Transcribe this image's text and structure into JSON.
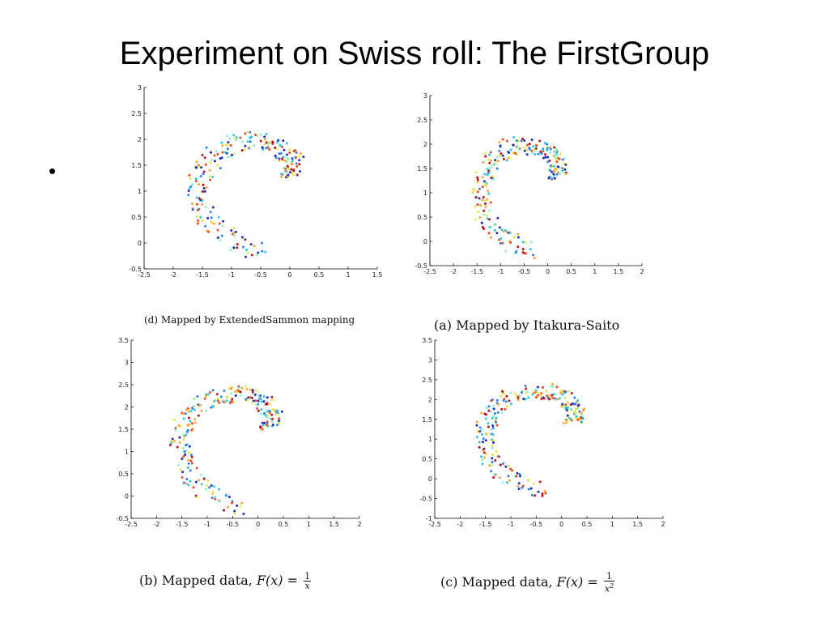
{
  "title": "Experiment on Swiss roll: The FirstGroup",
  "bullet": "•",
  "colors": {
    "scale": [
      "#1f2fb5",
      "#2f7fe8",
      "#29c7e6",
      "#8ef0c8",
      "#e6e640",
      "#f6a830",
      "#e84a2a",
      "#b8101e"
    ]
  },
  "panels": [
    {
      "id": "d",
      "caption": "(d) Mapped by ExtendedSammon mapping",
      "chart_data": {
        "type": "scatter",
        "xlim": [
          -2.5,
          1.5
        ],
        "ylim": [
          -0.5,
          3
        ],
        "xticks": [
          -2.5,
          -2,
          -1.5,
          -1,
          -0.5,
          0,
          0.5,
          1,
          1.5
        ],
        "yticks": [
          -0.5,
          0,
          0.5,
          1,
          1.5,
          2,
          2.5,
          3
        ],
        "spiral": {
          "cx": -0.35,
          "cy": 1.25,
          "a_start": 0.0,
          "a_end": 4.5,
          "r_start": 0.35,
          "r_end": 1.6,
          "x_scale": 1.0,
          "y_scale": 0.88
        },
        "n_points": 230
      }
    },
    {
      "id": "a",
      "caption": "(a) Mapped by Itakura-Saito",
      "chart_data": {
        "type": "scatter",
        "xlim": [
          -2.5,
          2
        ],
        "ylim": [
          -0.5,
          3
        ],
        "xticks": [
          -2.5,
          -2,
          -1.5,
          -1,
          -0.5,
          0,
          0.5,
          1,
          1.5,
          2
        ],
        "yticks": [
          -0.5,
          0,
          0.5,
          1,
          1.5,
          2,
          2.5,
          3
        ],
        "spiral": {
          "cx": -0.2,
          "cy": 1.25,
          "a_start": 0.0,
          "a_end": 4.5,
          "r_start": 0.4,
          "r_end": 1.6,
          "x_scale": 1.0,
          "y_scale": 0.9
        },
        "n_points": 230
      }
    },
    {
      "id": "b",
      "caption_prefix": "(b) Mapped data, ",
      "caption_func": "F(x) =",
      "caption_num": "1",
      "caption_den": "x",
      "caption_den_sup": "",
      "chart_data": {
        "type": "scatter",
        "xlim": [
          -2.5,
          2
        ],
        "ylim": [
          -0.5,
          3.5
        ],
        "xticks": [
          -2.5,
          -2,
          -1.5,
          -1,
          -0.5,
          0,
          0.5,
          1,
          1.5,
          2
        ],
        "yticks": [
          -0.5,
          0,
          0.5,
          1,
          1.5,
          2,
          2.5,
          3,
          3.5
        ],
        "spiral": {
          "cx": -0.2,
          "cy": 1.45,
          "a_start": 0.0,
          "a_end": 4.5,
          "r_start": 0.45,
          "r_end": 1.75,
          "x_scale": 1.0,
          "y_scale": 0.95
        },
        "n_points": 240
      }
    },
    {
      "id": "c",
      "caption_prefix": "(c) Mapped data, ",
      "caption_func": "F(x) =",
      "caption_num": "1",
      "caption_den": "x",
      "caption_den_sup": "2",
      "chart_data": {
        "type": "scatter",
        "xlim": [
          -2.5,
          2
        ],
        "ylim": [
          -1,
          3.5
        ],
        "xticks": [
          -2.5,
          -2,
          -1.5,
          -1,
          -0.5,
          0,
          0.5,
          1,
          1.5,
          2
        ],
        "yticks": [
          -1,
          -0.5,
          0,
          0.5,
          1,
          1.5,
          2,
          2.5,
          3,
          3.5
        ],
        "spiral": {
          "cx": -0.2,
          "cy": 1.35,
          "a_start": 0.0,
          "a_end": 4.5,
          "r_start": 0.45,
          "r_end": 1.75,
          "x_scale": 1.0,
          "y_scale": 0.95
        },
        "n_points": 240
      }
    }
  ]
}
